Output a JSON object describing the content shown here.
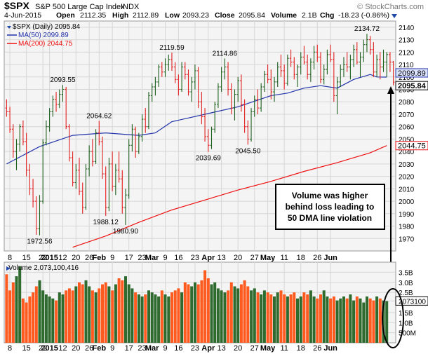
{
  "header": {
    "symbol": "$SPX",
    "name": "S&P 500 Large Cap Index",
    "exchange": "INDX",
    "watermark": "© StockCharts.com",
    "date": "4-Jun-2015",
    "open_label": "Open",
    "open": "2112.35",
    "high_label": "High",
    "high": "2112.89",
    "low_label": "Low",
    "low": "2093.23",
    "close_label": "Close",
    "close": "2095.84",
    "volume_label": "Volume",
    "volume": "2.1B",
    "chg_label": "Chg",
    "chg": "-18.23 (-0.86%)"
  },
  "legend": {
    "price": "$SPX (Daily) 2095.84",
    "ma50": "MA(50) 2099.89",
    "ma200": "MA(200) 2044.75",
    "volume": "Volume 2,073,100,416"
  },
  "colors": {
    "up": "#1e5f1e",
    "down": "#e02020",
    "ma50": "#2233aa",
    "ma200": "#ee1111",
    "vol_up": "#2f6b2f",
    "vol_down": "#ff5a1f",
    "grid": "#d6d6d6",
    "panel_bg": "#f4f4f4",
    "label_ma50": "#dde4ff"
  },
  "annotation": {
    "lines": [
      "Volume was higher",
      "behind loss leading to",
      "50 DMA line violation"
    ]
  },
  "chart_data": [
    {
      "type": "candlestick",
      "title": "$SPX S&P 500 Large Cap Index INDX",
      "ylim": [
        1960,
        2145
      ],
      "y_ticks": [
        1970,
        1980,
        1990,
        2000,
        2010,
        2020,
        2030,
        2040,
        2050,
        2060,
        2070,
        2080,
        2090,
        2100,
        2110,
        2120,
        2130,
        2140
      ],
      "x_tick_labels": [
        "8",
        "15",
        "22",
        "2015",
        "12",
        "20",
        "26",
        "Feb",
        "9",
        "17",
        "23",
        "Mar",
        "9",
        "16",
        "23",
        "Apr",
        "13",
        "20",
        "27",
        "May",
        "11",
        "18",
        "26",
        "Jun"
      ],
      "peak_labels": [
        "2093.55",
        "2064.62",
        "2119.59",
        "2114.86",
        "2134.72",
        "1972.56",
        "1988.12",
        "1980.90",
        "2039.69",
        "2045.50"
      ],
      "price_labels": [
        "2099.89",
        "2095.84",
        "2044.75"
      ],
      "ohlc": [
        [
          2075,
          2082,
          2068,
          2072
        ],
        [
          2072,
          2076,
          2055,
          2058
        ],
        [
          2058,
          2062,
          2035,
          2040
        ],
        [
          2040,
          2050,
          2025,
          2046
        ],
        [
          2046,
          2062,
          2040,
          2060
        ],
        [
          2060,
          2065,
          2045,
          2048
        ],
        [
          2048,
          2055,
          2020,
          2025
        ],
        [
          2025,
          2030,
          2005,
          2010
        ],
        [
          2010,
          2018,
          1995,
          2000
        ],
        [
          2000,
          2004,
          1973,
          1978
        ],
        [
          1978,
          2005,
          1972.56,
          2000
        ],
        [
          2000,
          2050,
          1998,
          2047
        ],
        [
          2047,
          2065,
          2045,
          2060
        ],
        [
          2060,
          2075,
          2056,
          2072
        ],
        [
          2072,
          2085,
          2068,
          2082
        ],
        [
          2082,
          2088,
          2072,
          2078
        ],
        [
          2078,
          2090,
          2075,
          2086
        ],
        [
          2086,
          2093.55,
          2080,
          2090
        ],
        [
          2090,
          2092,
          2058,
          2060
        ],
        [
          2060,
          2062,
          2032,
          2035
        ],
        [
          2035,
          2040,
          2012,
          2015
        ],
        [
          2015,
          2030,
          2010,
          2025
        ],
        [
          2025,
          2035,
          2005,
          2008
        ],
        [
          2008,
          2015,
          1990,
          1995
        ],
        [
          1995,
          2030,
          1993,
          2026
        ],
        [
          2026,
          2045,
          2020,
          2040
        ],
        [
          2040,
          2050,
          2028,
          2032
        ],
        [
          2032,
          2058,
          2030,
          2055
        ],
        [
          2055,
          2064.62,
          2045,
          2048
        ],
        [
          2048,
          2052,
          2018,
          2022
        ],
        [
          2022,
          2028,
          1988.12,
          1995
        ],
        [
          1995,
          2035,
          1992,
          2030
        ],
        [
          2030,
          2040,
          2008,
          2012
        ],
        [
          2012,
          2030,
          2005,
          2025
        ],
        [
          2025,
          2040,
          2015,
          2018
        ],
        [
          2018,
          2025,
          1990,
          1995
        ],
        [
          1995,
          2010,
          1980.9,
          2005
        ],
        [
          2005,
          2050,
          2002,
          2045
        ],
        [
          2045,
          2062,
          2040,
          2058
        ],
        [
          2058,
          2060,
          2035,
          2040
        ],
        [
          2040,
          2055,
          2038,
          2052
        ],
        [
          2052,
          2070,
          2048,
          2066
        ],
        [
          2066,
          2075,
          2055,
          2060
        ],
        [
          2060,
          2088,
          2058,
          2085
        ],
        [
          2085,
          2095,
          2080,
          2092
        ],
        [
          2092,
          2100,
          2085,
          2096
        ],
        [
          2096,
          2110,
          2092,
          2108
        ],
        [
          2108,
          2112,
          2100,
          2104
        ],
        [
          2104,
          2115,
          2100,
          2110
        ],
        [
          2110,
          2118,
          2105,
          2114
        ],
        [
          2114,
          2119.59,
          2105,
          2108
        ],
        [
          2108,
          2112,
          2095,
          2098
        ],
        [
          2098,
          2102,
          2085,
          2090
        ],
        [
          2090,
          2112,
          2088,
          2108
        ],
        [
          2108,
          2112,
          2098,
          2102
        ],
        [
          2102,
          2106,
          2085,
          2088
        ],
        [
          2088,
          2100,
          2080,
          2096
        ],
        [
          2096,
          2110,
          2090,
          2105
        ],
        [
          2105,
          2108,
          2075,
          2080
        ],
        [
          2080,
          2088,
          2062,
          2068
        ],
        [
          2068,
          2075,
          2048,
          2052
        ],
        [
          2052,
          2058,
          2039.69,
          2045
        ],
        [
          2045,
          2060,
          2042,
          2058
        ],
        [
          2058,
          2080,
          2055,
          2078
        ],
        [
          2078,
          2095,
          2075,
          2092
        ],
        [
          2092,
          2108,
          2088,
          2104
        ],
        [
          2104,
          2114.86,
          2098,
          2108
        ],
        [
          2108,
          2112,
          2085,
          2090
        ],
        [
          2090,
          2095,
          2070,
          2075
        ],
        [
          2075,
          2090,
          2065,
          2086
        ],
        [
          2086,
          2100,
          2080,
          2097
        ],
        [
          2097,
          2102,
          2072,
          2078
        ],
        [
          2078,
          2082,
          2055,
          2060
        ],
        [
          2060,
          2065,
          2045.5,
          2050
        ],
        [
          2050,
          2075,
          2048,
          2072
        ],
        [
          2072,
          2085,
          2068,
          2082
        ],
        [
          2082,
          2090,
          2070,
          2075
        ],
        [
          2075,
          2095,
          2072,
          2092
        ],
        [
          2092,
          2105,
          2088,
          2102
        ],
        [
          2102,
          2110,
          2095,
          2098
        ],
        [
          2098,
          2106,
          2082,
          2088
        ],
        [
          2088,
          2100,
          2080,
          2096
        ],
        [
          2096,
          2112,
          2092,
          2108
        ],
        [
          2108,
          2118,
          2100,
          2105
        ],
        [
          2105,
          2110,
          2090,
          2095
        ],
        [
          2095,
          2118,
          2093,
          2115
        ],
        [
          2115,
          2122,
          2108,
          2112
        ],
        [
          2112,
          2116,
          2098,
          2102
        ],
        [
          2102,
          2110,
          2092,
          2108
        ],
        [
          2108,
          2120,
          2102,
          2116
        ],
        [
          2116,
          2125,
          2110,
          2112
        ],
        [
          2112,
          2118,
          2098,
          2102
        ],
        [
          2102,
          2115,
          2096,
          2112
        ],
        [
          2112,
          2125,
          2106,
          2120
        ],
        [
          2120,
          2126,
          2112,
          2116
        ],
        [
          2116,
          2120,
          2095,
          2098
        ],
        [
          2098,
          2110,
          2094,
          2106
        ],
        [
          2106,
          2122,
          2102,
          2118
        ],
        [
          2118,
          2126,
          2112,
          2114
        ],
        [
          2114,
          2120,
          2080,
          2085
        ],
        [
          2085,
          2100,
          2070,
          2096
        ],
        [
          2096,
          2110,
          2092,
          2106
        ],
        [
          2106,
          2116,
          2100,
          2110
        ],
        [
          2110,
          2120,
          2104,
          2108
        ],
        [
          2108,
          2118,
          2098,
          2114
        ],
        [
          2114,
          2126,
          2108,
          2122
        ],
        [
          2122,
          2128,
          2110,
          2112
        ],
        [
          2112,
          2120,
          2100,
          2116
        ],
        [
          2116,
          2130,
          2112,
          2126
        ],
        [
          2126,
          2134.72,
          2120,
          2130
        ],
        [
          2130,
          2133,
          2118,
          2122
        ],
        [
          2122,
          2128,
          2100,
          2104
        ],
        [
          2104,
          2118,
          2100,
          2114
        ],
        [
          2114,
          2120,
          2098,
          2108
        ],
        [
          2108,
          2122,
          2104,
          2112
        ],
        [
          2112,
          2120,
          2100,
          2118
        ],
        [
          2118,
          2120,
          2104,
          2112
        ],
        [
          2112,
          2112.89,
          2093.23,
          2095.84
        ]
      ],
      "ma50": [
        [
          0,
          2030
        ],
        [
          10,
          2044
        ],
        [
          20,
          2053
        ],
        [
          30,
          2055
        ],
        [
          40,
          2053
        ],
        [
          45,
          2055
        ],
        [
          50,
          2064
        ],
        [
          60,
          2070
        ],
        [
          70,
          2076
        ],
        [
          80,
          2085
        ],
        [
          85,
          2087
        ],
        [
          90,
          2091
        ],
        [
          95,
          2093
        ],
        [
          100,
          2091
        ],
        [
          105,
          2098
        ],
        [
          110,
          2102
        ],
        [
          112,
          2100
        ],
        [
          115,
          2099.89
        ]
      ],
      "ma200": [
        [
          20,
          1963
        ],
        [
          30,
          1972
        ],
        [
          40,
          1983
        ],
        [
          50,
          1993
        ],
        [
          60,
          2001
        ],
        [
          70,
          2009
        ],
        [
          80,
          2016
        ],
        [
          90,
          2024
        ],
        [
          100,
          2031
        ],
        [
          110,
          2039
        ],
        [
          115,
          2044.75
        ]
      ]
    },
    {
      "type": "bar",
      "title": "Volume",
      "ylim": [
        0,
        4000000000
      ],
      "y_tick_labels": [
        "3.5B",
        "3.0B",
        "2.5B",
        "2073100",
        "1.5B",
        "1.0B",
        "500M"
      ],
      "volume": [
        3.4,
        2.6,
        3.0,
        3.3,
        3.8,
        2.2,
        2.0,
        2.3,
        2.5,
        2.8,
        3.1,
        2.6,
        2.4,
        2.3,
        2.2,
        2.1,
        2.5,
        2.4,
        2.6,
        2.7,
        2.6,
        2.8,
        3.0,
        2.9,
        3.1,
        2.8,
        2.6,
        2.5,
        2.7,
        2.9,
        3.0,
        2.8,
        2.6,
        2.9,
        3.2,
        3.1,
        3.3,
        2.9,
        2.7,
        2.5,
        2.4,
        2.3,
        2.4,
        2.6,
        2.5,
        2.4,
        2.3,
        2.6,
        2.4,
        2.3,
        2.5,
        2.6,
        2.7,
        2.5,
        3.0,
        2.9,
        2.8,
        3.0,
        2.9,
        3.1,
        3.6,
        3.2,
        2.9,
        3.0,
        2.7,
        2.6,
        2.5,
        2.6,
        3.0,
        2.8,
        2.7,
        2.9,
        3.1,
        2.8,
        2.6,
        2.7,
        2.5,
        2.4,
        2.6,
        2.5,
        2.4,
        2.3,
        2.5,
        2.6,
        2.4,
        2.3,
        2.4,
        2.5,
        2.2,
        2.3,
        2.5,
        2.4,
        2.6,
        2.3,
        2.2,
        2.4,
        2.6,
        2.3,
        2.2,
        2.3,
        2.1,
        2.2,
        2.3,
        2.2,
        2.4,
        2.1,
        2.3,
        2.2,
        2.0,
        2.3,
        2.2,
        2.1,
        2.3,
        2.2,
        2.1,
        2.07
      ]
    }
  ]
}
